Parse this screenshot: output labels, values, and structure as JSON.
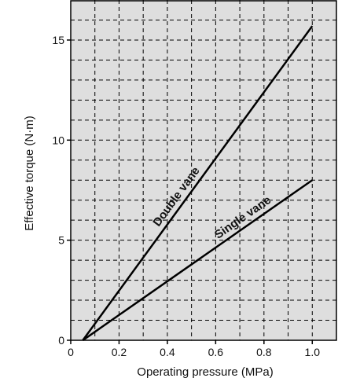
{
  "chart_data": {
    "type": "line",
    "title": "",
    "xlabel": "Operating pressure (MPa)",
    "ylabel": "Effective torque (N·m)",
    "xlim": [
      0,
      1.1
    ],
    "ylim": [
      0,
      17
    ],
    "x_ticks": [
      0,
      0.2,
      0.4,
      0.6,
      0.8,
      1.0
    ],
    "x_tick_labels": [
      "0",
      "0.2",
      "0.4",
      "0.6",
      "0.8",
      "1.0"
    ],
    "y_ticks": [
      0,
      5,
      10,
      15
    ],
    "y_tick_labels": [
      "0",
      "5",
      "10",
      "15"
    ],
    "grid": true,
    "grid_style": "dashed",
    "minor_x_step": 0.1,
    "minor_y_step": 1,
    "legend": "none",
    "background_color": "#dedede",
    "line_color": "#000000",
    "series": [
      {
        "name": "Double vane",
        "x": [
          0.05,
          1.0
        ],
        "y": [
          0,
          15.7
        ]
      },
      {
        "name": "Single vane",
        "x": [
          0.05,
          1.0
        ],
        "y": [
          0,
          8.0
        ]
      }
    ],
    "annotations": [
      "Double vane",
      "Single vane"
    ]
  }
}
